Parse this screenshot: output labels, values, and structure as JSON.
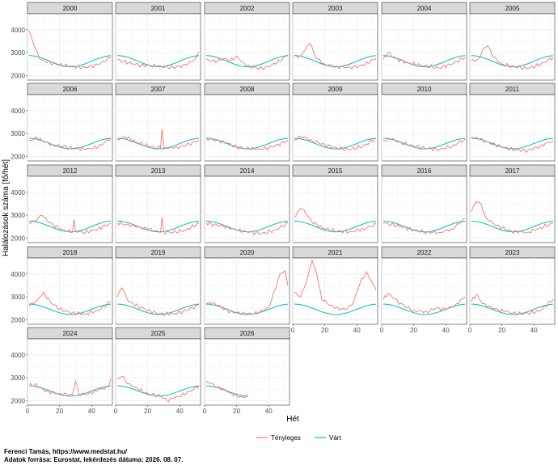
{
  "chart_data": {
    "type": "line",
    "facet_by": "year",
    "xlabel": "Hét",
    "ylabel": "Halálozások száma [fő/hét]",
    "xlim": [
      0,
      53
    ],
    "ylim": [
      1800,
      4700
    ],
    "x_ticks": [
      0,
      20,
      40
    ],
    "y_ticks": [
      2000,
      3000,
      4000
    ],
    "grid": true,
    "legend_position": "bottom",
    "series": [
      {
        "name": "Tényleges",
        "color": "#F8766D"
      },
      {
        "name": "Várt",
        "color": "#00BFC4"
      }
    ],
    "expected": {
      "peak_week": 1,
      "min_week": 27,
      "values": [
        {
          "years": [
            2000,
            2001,
            2002,
            2003,
            2004,
            2005
          ],
          "peak": 2870,
          "min": 2380
        },
        {
          "years": [
            2006,
            2007,
            2008,
            2009,
            2010,
            2011
          ],
          "peak": 2790,
          "min": 2330
        },
        {
          "years": [
            2012,
            2013,
            2014,
            2015,
            2016,
            2017
          ],
          "peak": 2740,
          "min": 2270
        },
        {
          "years": [
            2018,
            2019,
            2020,
            2021,
            2022,
            2023
          ],
          "peak": 2680,
          "min": 2230
        },
        {
          "years": [
            2024,
            2025,
            2026
          ],
          "peak": 2640,
          "min": 2200
        }
      ]
    },
    "panels": [
      {
        "year": "2000",
        "actual_keypoints": [
          [
            1,
            3950
          ],
          [
            4,
            3300
          ],
          [
            8,
            2700
          ],
          [
            16,
            2520
          ],
          [
            26,
            2400
          ],
          [
            36,
            2350
          ],
          [
            44,
            2470
          ],
          [
            52,
            2800
          ]
        ]
      },
      {
        "year": "2001",
        "actual_keypoints": [
          [
            1,
            2700
          ],
          [
            8,
            2550
          ],
          [
            16,
            2450
          ],
          [
            26,
            2400
          ],
          [
            36,
            2350
          ],
          [
            44,
            2450
          ],
          [
            50,
            2750
          ],
          [
            52,
            3050
          ]
        ]
      },
      {
        "year": "2002",
        "actual_keypoints": [
          [
            1,
            2700
          ],
          [
            8,
            2600
          ],
          [
            12,
            2750
          ],
          [
            16,
            2650
          ],
          [
            20,
            2850
          ],
          [
            26,
            2400
          ],
          [
            36,
            2300
          ],
          [
            44,
            2500
          ],
          [
            52,
            2900
          ]
        ]
      },
      {
        "year": "2003",
        "actual_keypoints": [
          [
            1,
            2850
          ],
          [
            5,
            2850
          ],
          [
            9,
            3300
          ],
          [
            11,
            3400
          ],
          [
            14,
            2800
          ],
          [
            20,
            2500
          ],
          [
            28,
            2380
          ],
          [
            36,
            2350
          ],
          [
            44,
            2450
          ],
          [
            52,
            2750
          ]
        ]
      },
      {
        "year": "2004",
        "actual_keypoints": [
          [
            1,
            2700
          ],
          [
            4,
            3000
          ],
          [
            8,
            2750
          ],
          [
            16,
            2550
          ],
          [
            26,
            2420
          ],
          [
            36,
            2330
          ],
          [
            44,
            2500
          ],
          [
            52,
            2800
          ]
        ]
      },
      {
        "year": "2005",
        "actual_keypoints": [
          [
            1,
            2650
          ],
          [
            5,
            2700
          ],
          [
            9,
            3200
          ],
          [
            11,
            3300
          ],
          [
            15,
            2800
          ],
          [
            20,
            2500
          ],
          [
            28,
            2380
          ],
          [
            36,
            2300
          ],
          [
            44,
            2480
          ],
          [
            52,
            2800
          ]
        ]
      },
      {
        "year": "2006",
        "actual_keypoints": [
          [
            1,
            2700
          ],
          [
            6,
            2800
          ],
          [
            10,
            2650
          ],
          [
            16,
            2500
          ],
          [
            26,
            2400
          ],
          [
            36,
            2300
          ],
          [
            44,
            2400
          ],
          [
            52,
            2800
          ]
        ]
      },
      {
        "year": "2007",
        "actual_keypoints": [
          [
            1,
            2750
          ],
          [
            6,
            2850
          ],
          [
            12,
            2650
          ],
          [
            20,
            2450
          ],
          [
            28,
            2350
          ],
          [
            29,
            3200
          ],
          [
            30,
            2400
          ],
          [
            36,
            2350
          ],
          [
            44,
            2480
          ],
          [
            52,
            2700
          ]
        ]
      },
      {
        "year": "2008",
        "actual_keypoints": [
          [
            1,
            2800
          ],
          [
            6,
            2700
          ],
          [
            12,
            2650
          ],
          [
            20,
            2400
          ],
          [
            28,
            2330
          ],
          [
            36,
            2300
          ],
          [
            44,
            2450
          ],
          [
            52,
            2700
          ]
        ]
      },
      {
        "year": "2009",
        "actual_keypoints": [
          [
            1,
            2750
          ],
          [
            6,
            2850
          ],
          [
            12,
            2700
          ],
          [
            20,
            2500
          ],
          [
            28,
            2350
          ],
          [
            36,
            2300
          ],
          [
            44,
            2450
          ],
          [
            52,
            2800
          ]
        ]
      },
      {
        "year": "2010",
        "actual_keypoints": [
          [
            1,
            2700
          ],
          [
            6,
            2750
          ],
          [
            12,
            2600
          ],
          [
            20,
            2450
          ],
          [
            28,
            2350
          ],
          [
            36,
            2300
          ],
          [
            44,
            2450
          ],
          [
            52,
            2750
          ]
        ]
      },
      {
        "year": "2011",
        "actual_keypoints": [
          [
            1,
            2850
          ],
          [
            6,
            2750
          ],
          [
            12,
            2600
          ],
          [
            20,
            2400
          ],
          [
            28,
            2280
          ],
          [
            36,
            2250
          ],
          [
            44,
            2450
          ],
          [
            52,
            2700
          ]
        ]
      },
      {
        "year": "2012",
        "actual_keypoints": [
          [
            1,
            2650
          ],
          [
            6,
            2800
          ],
          [
            9,
            3000
          ],
          [
            12,
            2750
          ],
          [
            20,
            2400
          ],
          [
            28,
            2250
          ],
          [
            29,
            2800
          ],
          [
            30,
            2300
          ],
          [
            36,
            2250
          ],
          [
            44,
            2400
          ],
          [
            52,
            2650
          ]
        ]
      },
      {
        "year": "2013",
        "actual_keypoints": [
          [
            1,
            2650
          ],
          [
            6,
            2600
          ],
          [
            12,
            2500
          ],
          [
            20,
            2400
          ],
          [
            28,
            2250
          ],
          [
            29,
            2900
          ],
          [
            30,
            2250
          ],
          [
            36,
            2250
          ],
          [
            44,
            2350
          ],
          [
            52,
            2650
          ]
        ]
      },
      {
        "year": "2014",
        "actual_keypoints": [
          [
            1,
            2650
          ],
          [
            6,
            2600
          ],
          [
            12,
            2500
          ],
          [
            20,
            2350
          ],
          [
            28,
            2250
          ],
          [
            36,
            2200
          ],
          [
            44,
            2350
          ],
          [
            52,
            2650
          ]
        ]
      },
      {
        "year": "2015",
        "actual_keypoints": [
          [
            1,
            2900
          ],
          [
            5,
            3300
          ],
          [
            8,
            3100
          ],
          [
            12,
            2700
          ],
          [
            20,
            2400
          ],
          [
            28,
            2300
          ],
          [
            36,
            2280
          ],
          [
            44,
            2400
          ],
          [
            52,
            2600
          ]
        ]
      },
      {
        "year": "2016",
        "actual_keypoints": [
          [
            1,
            2650
          ],
          [
            6,
            2600
          ],
          [
            12,
            2500
          ],
          [
            20,
            2350
          ],
          [
            28,
            2250
          ],
          [
            36,
            2250
          ],
          [
            44,
            2400
          ],
          [
            52,
            2850
          ]
        ]
      },
      {
        "year": "2017",
        "actual_keypoints": [
          [
            1,
            3150
          ],
          [
            4,
            3600
          ],
          [
            7,
            3500
          ],
          [
            10,
            2900
          ],
          [
            16,
            2550
          ],
          [
            26,
            2300
          ],
          [
            36,
            2250
          ],
          [
            44,
            2450
          ],
          [
            52,
            2650
          ]
        ]
      },
      {
        "year": "2018",
        "actual_keypoints": [
          [
            1,
            2600
          ],
          [
            6,
            2850
          ],
          [
            10,
            3200
          ],
          [
            14,
            2800
          ],
          [
            20,
            2450
          ],
          [
            28,
            2300
          ],
          [
            36,
            2250
          ],
          [
            44,
            2400
          ],
          [
            52,
            2800
          ]
        ]
      },
      {
        "year": "2019",
        "actual_keypoints": [
          [
            1,
            3000
          ],
          [
            4,
            3400
          ],
          [
            8,
            2800
          ],
          [
            14,
            2600
          ],
          [
            20,
            2400
          ],
          [
            28,
            2250
          ],
          [
            36,
            2250
          ],
          [
            44,
            2400
          ],
          [
            52,
            2650
          ]
        ]
      },
      {
        "year": "2020",
        "actual_keypoints": [
          [
            1,
            2700
          ],
          [
            6,
            2750
          ],
          [
            10,
            2550
          ],
          [
            16,
            2350
          ],
          [
            26,
            2250
          ],
          [
            34,
            2300
          ],
          [
            40,
            2550
          ],
          [
            44,
            3300
          ],
          [
            47,
            4000
          ],
          [
            50,
            4150
          ],
          [
            52,
            3500
          ]
        ]
      },
      {
        "year": "2021",
        "actual_keypoints": [
          [
            1,
            3200
          ],
          [
            5,
            3000
          ],
          [
            9,
            3800
          ],
          [
            12,
            4600
          ],
          [
            15,
            4000
          ],
          [
            18,
            2900
          ],
          [
            26,
            2500
          ],
          [
            34,
            2450
          ],
          [
            38,
            2800
          ],
          [
            42,
            3600
          ],
          [
            46,
            4100
          ],
          [
            52,
            3300
          ]
        ]
      },
      {
        "year": "2022",
        "actual_keypoints": [
          [
            1,
            2900
          ],
          [
            4,
            3150
          ],
          [
            8,
            2900
          ],
          [
            14,
            2600
          ],
          [
            20,
            2400
          ],
          [
            28,
            2350
          ],
          [
            34,
            2500
          ],
          [
            40,
            2450
          ],
          [
            46,
            2650
          ],
          [
            52,
            3000
          ]
        ]
      },
      {
        "year": "2023",
        "actual_keypoints": [
          [
            1,
            2800
          ],
          [
            4,
            3100
          ],
          [
            8,
            2700
          ],
          [
            14,
            2500
          ],
          [
            22,
            2350
          ],
          [
            30,
            2250
          ],
          [
            38,
            2300
          ],
          [
            44,
            2400
          ],
          [
            52,
            2900
          ]
        ]
      },
      {
        "year": "2024",
        "actual_keypoints": [
          [
            1,
            2700
          ],
          [
            6,
            2650
          ],
          [
            12,
            2400
          ],
          [
            20,
            2300
          ],
          [
            28,
            2250
          ],
          [
            30,
            2850
          ],
          [
            32,
            2300
          ],
          [
            36,
            2250
          ],
          [
            44,
            2450
          ],
          [
            50,
            2600
          ],
          [
            52,
            2950
          ]
        ]
      },
      {
        "year": "2025",
        "actual_keypoints": [
          [
            1,
            2950
          ],
          [
            4,
            3050
          ],
          [
            8,
            2750
          ],
          [
            14,
            2500
          ],
          [
            20,
            2300
          ],
          [
            28,
            2200
          ],
          [
            32,
            2000
          ],
          [
            36,
            2100
          ],
          [
            44,
            2300
          ],
          [
            52,
            2650
          ]
        ]
      },
      {
        "year": "2026",
        "actual_keypoints": [
          [
            1,
            2850
          ],
          [
            4,
            2750
          ],
          [
            8,
            2600
          ],
          [
            12,
            2500
          ],
          [
            16,
            2350
          ],
          [
            20,
            2200
          ],
          [
            24,
            2150
          ],
          [
            27,
            2250
          ]
        ]
      }
    ]
  },
  "caption": {
    "line1": "Ferenci Tamás, https://www.medstat.hu/",
    "line2": "Adatok forrása: Eurostat, lekérdezés dátuma: 2026. 08. 07."
  }
}
